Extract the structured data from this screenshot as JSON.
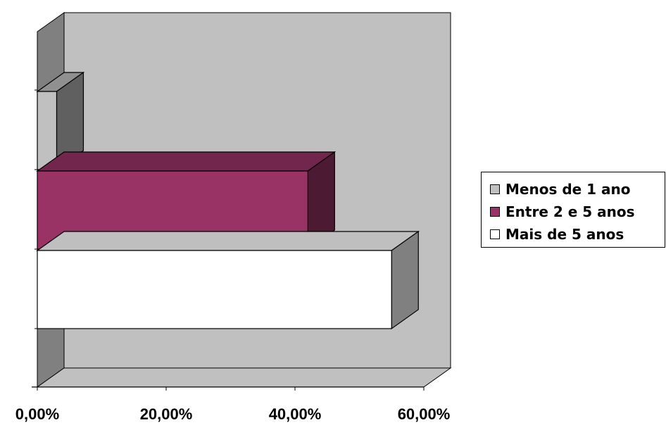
{
  "chart_data": {
    "type": "bar",
    "orientation": "horizontal",
    "three_d": true,
    "title": "",
    "xlabel": "",
    "ylabel": "",
    "xlim": [
      0,
      0.6
    ],
    "x_ticks": [
      "0,00%",
      "20,00%",
      "40,00%",
      "60,00%"
    ],
    "x_tick_values": [
      0,
      0.2,
      0.4,
      0.6
    ],
    "grid": false,
    "legend_position": "right",
    "series": [
      {
        "name": "Menos de 1 ano",
        "value": 0.03,
        "color": "#c0c0c0"
      },
      {
        "name": "Entre 2 e 5 anos",
        "value": 0.42,
        "color": "#993366"
      },
      {
        "name": "Mais de 5 anos",
        "value": 0.55,
        "color": "#ffffff"
      }
    ],
    "wall_color": "#c0c0c0",
    "side_wall_color": "#808080"
  }
}
